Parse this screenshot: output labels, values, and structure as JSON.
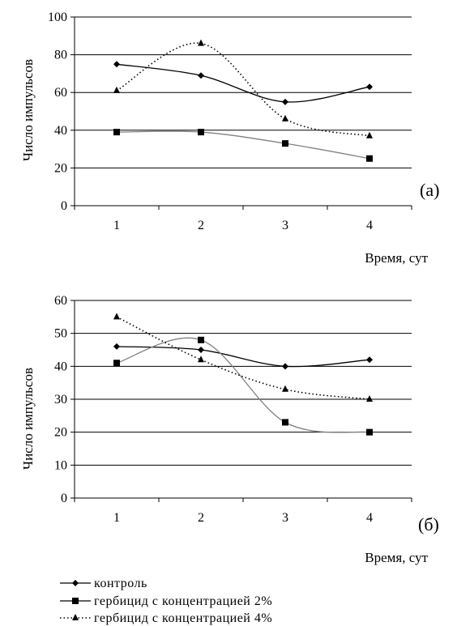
{
  "legend": {
    "items": [
      {
        "label": "контроль",
        "series_index": 0
      },
      {
        "label": "гербицид с концентрацией 2%",
        "series_index": 1
      },
      {
        "label": "гербицид с концентрацией 4%",
        "series_index": 2
      }
    ]
  },
  "series_styles": [
    {
      "marker": "diamond",
      "color": "#000000",
      "dash": "none"
    },
    {
      "marker": "square",
      "color": "#808080",
      "dash": "none"
    },
    {
      "marker": "triangle",
      "color": "#000000",
      "dash": "dotted"
    }
  ],
  "chart_data": [
    {
      "type": "line",
      "panel_label": "(а)",
      "xlabel": "Время, сут",
      "ylabel": "Число импульсов",
      "categories": [
        "1",
        "2",
        "3",
        "4"
      ],
      "ylim": [
        0,
        100
      ],
      "yticks": [
        "0",
        "20",
        "40",
        "60",
        "80",
        "100"
      ],
      "grid": true,
      "series": [
        {
          "name": "контроль",
          "values": [
            75,
            69,
            55,
            63
          ]
        },
        {
          "name": "гербицид с концентрацией 2%",
          "values": [
            39,
            39,
            33,
            25
          ]
        },
        {
          "name": "гербицид с концентрацией 4%",
          "values": [
            61,
            86,
            46,
            37
          ]
        }
      ]
    },
    {
      "type": "line",
      "panel_label": "(б)",
      "xlabel": "Время, сут",
      "ylabel": "Число импульсов",
      "categories": [
        "1",
        "2",
        "3",
        "4"
      ],
      "ylim": [
        0,
        60
      ],
      "yticks": [
        "0",
        "10",
        "20",
        "30",
        "40",
        "50",
        "60"
      ],
      "grid": true,
      "series": [
        {
          "name": "контроль",
          "values": [
            46,
            45,
            40,
            42
          ]
        },
        {
          "name": "гербицид с концентрацией 2%",
          "values": [
            41,
            48,
            23,
            20
          ]
        },
        {
          "name": "гербицид с концентрацией 4%",
          "values": [
            55,
            42,
            33,
            30
          ]
        }
      ]
    }
  ]
}
